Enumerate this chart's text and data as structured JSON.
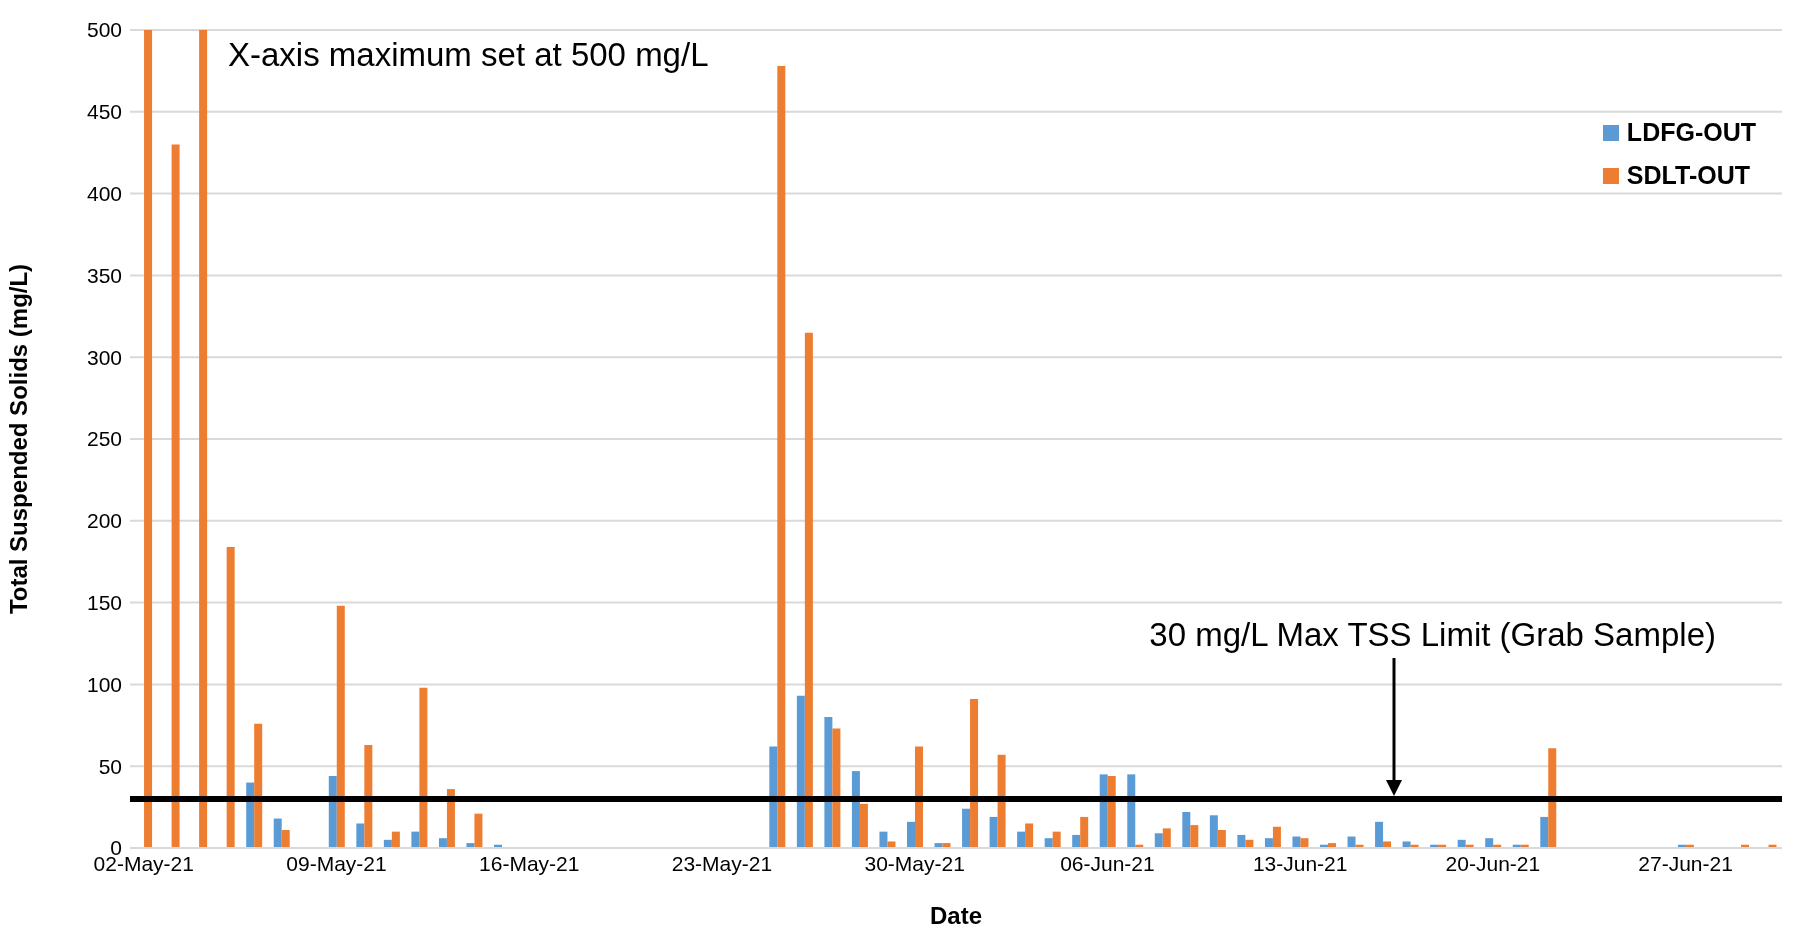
{
  "chart_data": {
    "type": "bar",
    "xlabel": "Date",
    "ylabel": "Total Suspended Solids (mg/L)",
    "categories": [
      "02-May-21",
      null,
      null,
      null,
      null,
      null,
      null,
      "09-May-21",
      null,
      null,
      null,
      null,
      null,
      null,
      "16-May-21",
      null,
      null,
      null,
      null,
      null,
      null,
      "23-May-21",
      null,
      null,
      null,
      null,
      null,
      null,
      "30-May-21",
      null,
      null,
      null,
      null,
      null,
      null,
      "06-Jun-21",
      null,
      null,
      null,
      null,
      null,
      null,
      "13-Jun-21",
      null,
      null,
      null,
      null,
      null,
      null,
      "20-Jun-21",
      null,
      null,
      null,
      null,
      null,
      null,
      "27-Jun-21",
      null,
      null,
      null
    ],
    "series": [
      {
        "name": "LDFG-OUT",
        "color": "#5b9bd5",
        "values": [
          null,
          null,
          null,
          null,
          40,
          18,
          null,
          44,
          15,
          5,
          10,
          6,
          3,
          2,
          null,
          null,
          null,
          null,
          null,
          null,
          null,
          null,
          null,
          62,
          93,
          80,
          47,
          10,
          16,
          3,
          24,
          19,
          10,
          6,
          8,
          45,
          45,
          9,
          22,
          20,
          8,
          6,
          7,
          2,
          7,
          16,
          4,
          2,
          5,
          6,
          2,
          19,
          null,
          null,
          null,
          null,
          2,
          null,
          null,
          null
        ]
      },
      {
        "name": "SDLT-OUT",
        "color": "#ed7d31",
        "values": [
          500,
          430,
          500,
          184,
          76,
          11,
          null,
          148,
          63,
          10,
          98,
          36,
          21,
          null,
          null,
          null,
          null,
          null,
          null,
          null,
          null,
          null,
          null,
          478,
          315,
          73,
          27,
          4,
          62,
          3,
          91,
          57,
          15,
          10,
          19,
          44,
          2,
          12,
          14,
          11,
          5,
          13,
          6,
          3,
          2,
          4,
          2,
          2,
          2,
          2,
          2,
          61,
          null,
          null,
          null,
          null,
          2,
          null,
          2,
          2
        ]
      }
    ],
    "ylim": [
      0,
      500
    ],
    "yticks": [
      0,
      50,
      100,
      150,
      200,
      250,
      300,
      350,
      400,
      450,
      500
    ],
    "grid": "y",
    "legend": "top right",
    "ref_lines": [
      {
        "axis": "y",
        "value": 30,
        "label": null,
        "color": "#000000",
        "line_style": "solid"
      }
    ],
    "annotations": [
      "X-axis maximum set at 500 mg/L",
      "30 mg/L Max TSS Limit (Grab Sample)"
    ]
  }
}
